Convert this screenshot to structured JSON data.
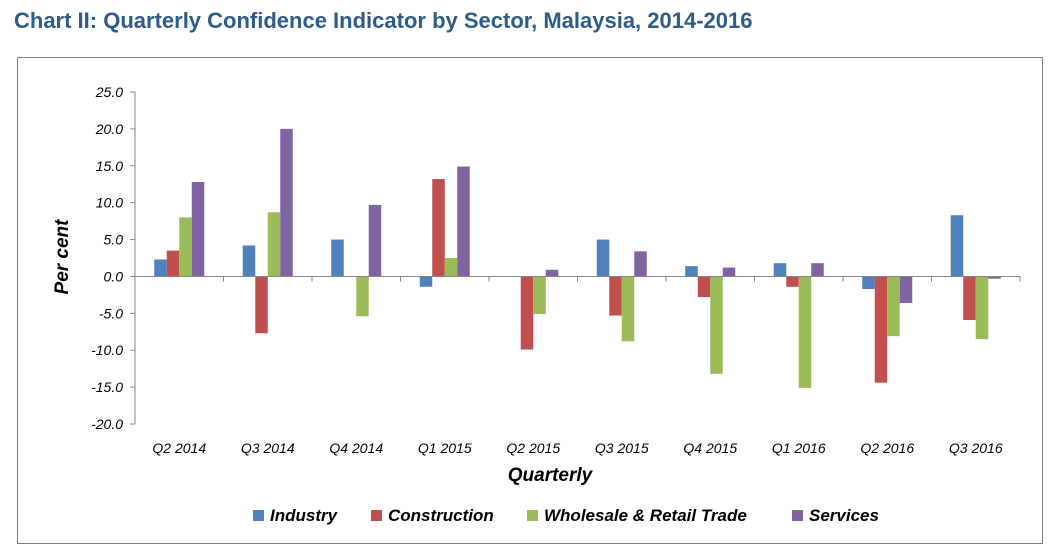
{
  "page": {
    "title": "Chart II: Quarterly Confidence Indicator by Sector, Malaysia, 2014-2016"
  },
  "chart_data": {
    "type": "bar",
    "title": "Chart II: Quarterly Confidence Indicator by Sector, Malaysia, 2014-2016",
    "xlabel": "Quarterly",
    "ylabel": "Per cent",
    "ylim": [
      -20,
      25
    ],
    "yticks": [
      25,
      20,
      15,
      10,
      5,
      0,
      -5,
      -10,
      -15,
      -20
    ],
    "ytick_labels": [
      "25.0",
      "20.0",
      "15.0",
      "10.0",
      "5.0",
      "0.0",
      "-5.0",
      "-10.0",
      "-15.0",
      "-20.0"
    ],
    "grid": false,
    "legend_position": "bottom",
    "categories": [
      "Q2 2014",
      "Q3 2014",
      "Q4 2014",
      "Q1 2015",
      "Q2 2015",
      "Q3 2015",
      "Q4 2015",
      "Q1 2016",
      "Q2 2016",
      "Q3 2016"
    ],
    "series": [
      {
        "name": "Industry",
        "color": "#4f81bd",
        "values": [
          2.3,
          4.2,
          5.0,
          -1.4,
          0.0,
          5.0,
          1.4,
          1.8,
          -1.7,
          8.3
        ]
      },
      {
        "name": "Construction",
        "color": "#c0504d",
        "values": [
          3.5,
          -7.7,
          0.0,
          13.2,
          -9.9,
          -5.3,
          -2.8,
          -1.4,
          -14.4,
          -5.9
        ]
      },
      {
        "name": "Wholesale & Retail Trade",
        "color": "#9bbb59",
        "values": [
          8.0,
          8.7,
          -5.4,
          2.5,
          -5.1,
          -8.8,
          -13.2,
          -15.1,
          -8.1,
          -8.5
        ]
      },
      {
        "name": "Services",
        "color": "#8064a2",
        "values": [
          12.8,
          20.0,
          9.7,
          14.9,
          0.9,
          3.4,
          1.2,
          1.8,
          -3.6,
          -0.3
        ]
      }
    ]
  }
}
